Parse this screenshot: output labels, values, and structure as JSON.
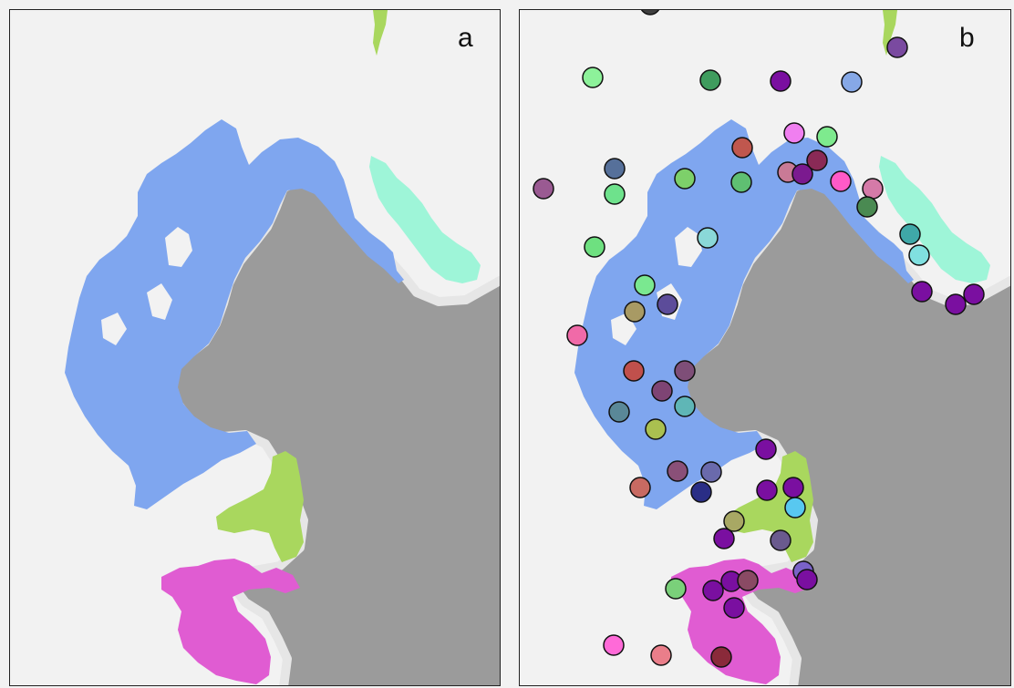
{
  "panels": [
    {
      "id": "a",
      "label": "a"
    },
    {
      "id": "b",
      "label": "b"
    }
  ],
  "colors": {
    "background": "#f2f2f2",
    "land": "#9b9b9b",
    "shore": "#e6e6e6",
    "region_blue": "#7fa6ef",
    "region_green": "#a9d75e",
    "region_magenta": "#e05cd2",
    "region_aqua": "#9ef5d8",
    "border": "#222222"
  },
  "regions": [
    {
      "name": "blue-region",
      "color": "#7fa6ef"
    },
    {
      "name": "green-region",
      "color": "#a9d75e"
    },
    {
      "name": "magenta-region",
      "color": "#e05cd2"
    },
    {
      "name": "aqua-region",
      "color": "#9ef5d8"
    }
  ],
  "points_b": [
    {
      "color": "#404040"
    },
    {
      "color": "#7a4aa0"
    },
    {
      "color": "#8df29a"
    },
    {
      "color": "#3f9c5e"
    },
    {
      "color": "#7a0fa0"
    },
    {
      "color": "#86a8e6"
    },
    {
      "color": "#f07ff0"
    },
    {
      "color": "#7eea8e"
    },
    {
      "color": "#c0574e"
    },
    {
      "color": "#56709a"
    },
    {
      "color": "#7dd06a"
    },
    {
      "color": "#5fbf72"
    },
    {
      "color": "#c97a96"
    },
    {
      "color": "#7b1a8f"
    },
    {
      "color": "#8a2a56"
    },
    {
      "color": "#ff5ac8"
    },
    {
      "color": "#9a5a92"
    },
    {
      "color": "#6ee28c"
    },
    {
      "color": "#d57aa8"
    },
    {
      "color": "#4a8a52"
    },
    {
      "color": "#6ee080"
    },
    {
      "color": "#8ad8d8"
    },
    {
      "color": "#3fa8a8"
    },
    {
      "color": "#80e0e0"
    },
    {
      "color": "#7a0fa0"
    },
    {
      "color": "#7a0fa0"
    },
    {
      "color": "#7a0fa0"
    },
    {
      "color": "#7ae890"
    },
    {
      "color": "#5c4c9a"
    },
    {
      "color": "#a89a64"
    },
    {
      "color": "#f06aa8"
    },
    {
      "color": "#c0504c"
    },
    {
      "color": "#7e4e78"
    },
    {
      "color": "#7e4474"
    },
    {
      "color": "#5fb6b6"
    },
    {
      "color": "#5a8898"
    },
    {
      "color": "#aac050"
    },
    {
      "color": "#7a0fa0"
    },
    {
      "color": "#8a5078"
    },
    {
      "color": "#6a6aac"
    },
    {
      "color": "#c86a62"
    },
    {
      "color": "#2a2e86"
    },
    {
      "color": "#7a0fa0"
    },
    {
      "color": "#7a0fa0"
    },
    {
      "color": "#58c8f0"
    },
    {
      "color": "#a8a864"
    },
    {
      "color": "#7a0fa0"
    },
    {
      "color": "#6a5a8e"
    },
    {
      "color": "#7a62c8"
    },
    {
      "color": "#7a0fa0"
    },
    {
      "color": "#7ad07a"
    },
    {
      "color": "#7a0fa0"
    },
    {
      "color": "#7a0fa0"
    },
    {
      "color": "#8a4a64"
    },
    {
      "color": "#7a0fa0"
    },
    {
      "color": "#ff6ad8"
    },
    {
      "color": "#ea7e8a"
    },
    {
      "color": "#8a2a3a"
    }
  ]
}
